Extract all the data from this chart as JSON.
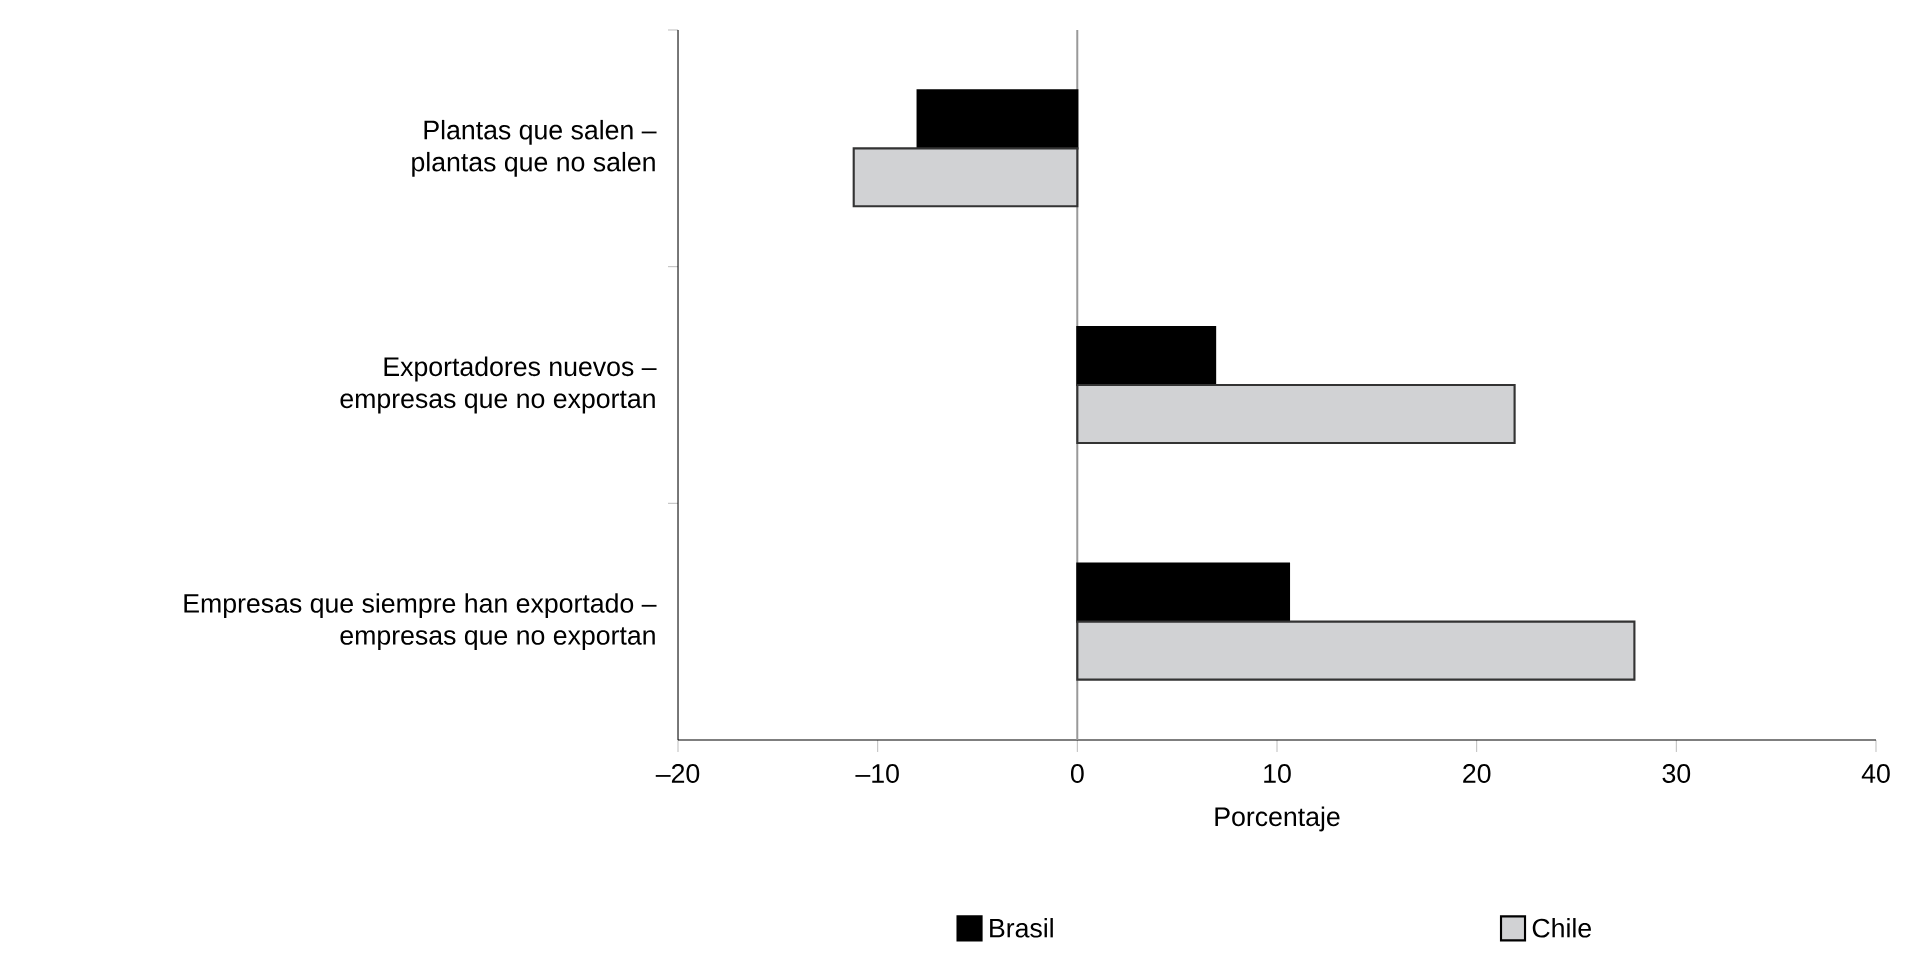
{
  "chart_data": {
    "type": "bar",
    "orientation": "horizontal",
    "xlabel": "Porcentaje",
    "categories": [
      "Plantas que salen –\nplantas que no salen",
      "Exportadores nuevos –\nempresas que no exportan",
      "Empresas que siempre han exportado –\nempresas que no exportan"
    ],
    "series": [
      {
        "name": "Brasil",
        "color": "#000000",
        "values": [
          -8.0,
          6.9,
          10.6
        ]
      },
      {
        "name": "Chile",
        "color": "#d1d2d4",
        "values": [
          -11.2,
          21.9,
          27.9
        ]
      }
    ],
    "xlim": [
      -20,
      40
    ],
    "xticks": [
      {
        "value": -20,
        "label": "–20"
      },
      {
        "value": -10,
        "label": "–10"
      },
      0,
      10,
      20,
      30,
      40
    ],
    "ref_lines": [
      {
        "axis": "x",
        "value": 0,
        "color": "#999999"
      }
    ],
    "legend": "bottom",
    "grid": false
  }
}
